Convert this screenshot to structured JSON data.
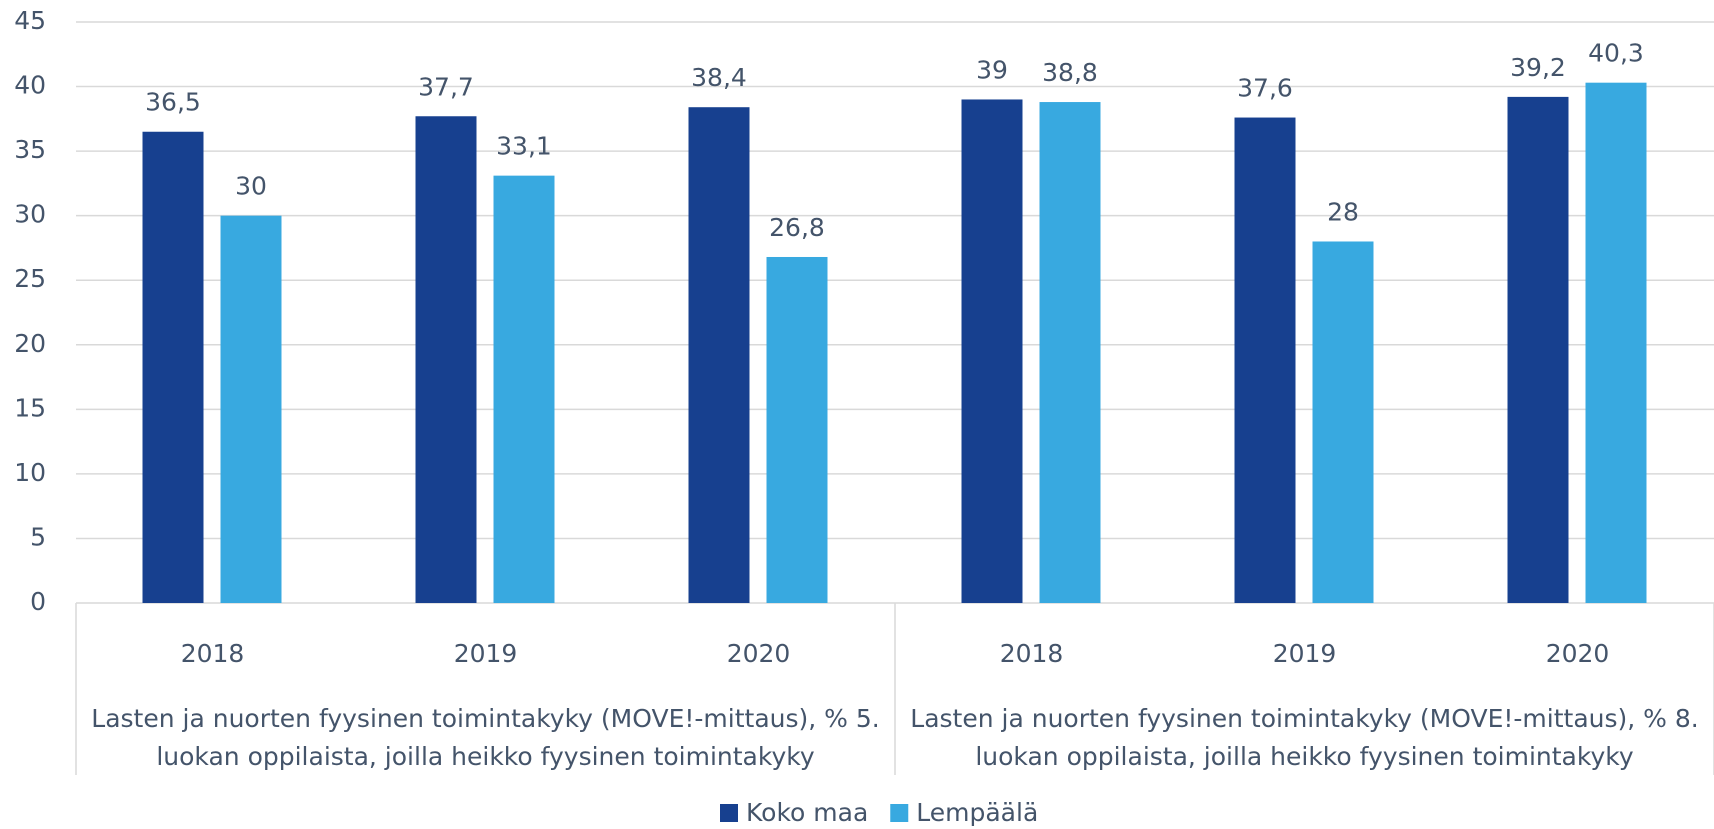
{
  "chart_data": {
    "type": "bar",
    "categories": [
      "2018",
      "2019",
      "2020",
      "2018",
      "2019",
      "2020"
    ],
    "groups": [
      {
        "label": "Lasten ja nuorten fyysinen toimintakyky (MOVE!-mittaus), % 5. luokan oppilaista, joilla heikko fyysinen toimintakyky",
        "span": 3
      },
      {
        "label": "Lasten ja nuorten fyysinen toimintakyky (MOVE!-mittaus), % 8. luokan oppilaista, joilla heikko fyysinen toimintakyky",
        "span": 3
      }
    ],
    "series": [
      {
        "name": "Koko maa",
        "color": "#17408f",
        "values": [
          36.5,
          37.7,
          38.4,
          39,
          37.6,
          39.2
        ],
        "value_labels": [
          "36,5",
          "37,7",
          "38,4",
          "39",
          "37,6",
          "39,2"
        ]
      },
      {
        "name": "Lempäälä",
        "color": "#38a9e0",
        "values": [
          30,
          33.1,
          26.8,
          38.8,
          28,
          40.3
        ],
        "value_labels": [
          "30",
          "33,1",
          "26,8",
          "38,8",
          "28",
          "40,3"
        ]
      }
    ],
    "ylim": [
      0,
      45
    ],
    "yticks": [
      0,
      5,
      10,
      15,
      20,
      25,
      30,
      35,
      40,
      45
    ],
    "grid": true,
    "legend": "bottom"
  }
}
